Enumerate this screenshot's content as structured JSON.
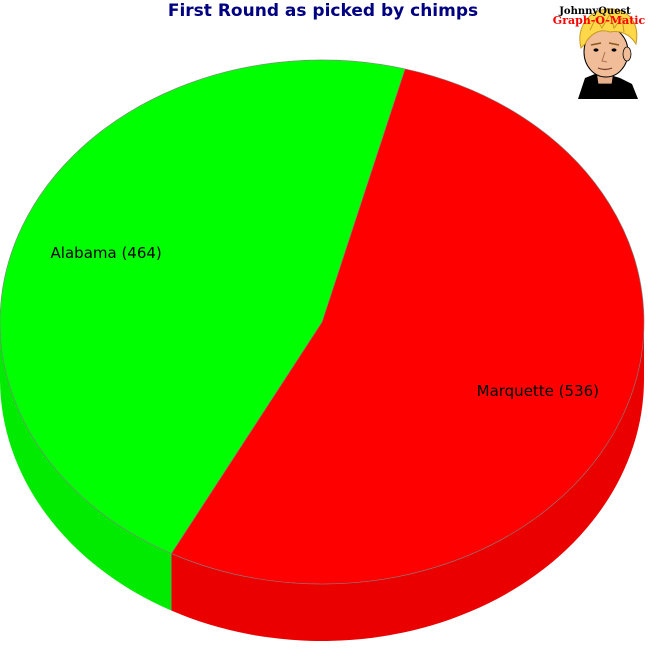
{
  "chart_data": {
    "type": "pie",
    "style": "3d",
    "title": "First Round as picked by chimps",
    "slices": [
      {
        "label": "Marquette",
        "value": 536,
        "display": "Marquette (536)",
        "color": "#ff0000"
      },
      {
        "label": "Alabama",
        "value": 464,
        "display": "Alabama (464)",
        "color": "#00ff00"
      }
    ],
    "legend": "none"
  },
  "logo": {
    "line1": "JohnnyQuest",
    "line2": "Graph-O-Matic",
    "line1_color": "#000000",
    "line2_color": "#ff0000"
  },
  "colors": {
    "title": "#000080",
    "background": "#ffffff",
    "outline": "#808080"
  }
}
